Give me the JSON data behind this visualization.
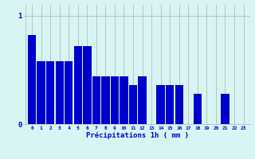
{
  "values": [
    0.82,
    0.58,
    0.58,
    0.58,
    0.58,
    0.72,
    0.72,
    0.44,
    0.44,
    0.44,
    0.44,
    0.36,
    0.44,
    0.0,
    0.36,
    0.36,
    0.36,
    0.0,
    0.28,
    0.0,
    0.0,
    0.28,
    0.0,
    0.0
  ],
  "categories": [
    "0",
    "1",
    "2",
    "3",
    "4",
    "5",
    "6",
    "7",
    "8",
    "9",
    "10",
    "11",
    "12",
    "13",
    "14",
    "15",
    "16",
    "17",
    "18",
    "19",
    "20",
    "21",
    "22",
    "23"
  ],
  "bar_color": "#0000cc",
  "background_color": "#d8f4f4",
  "grid_color": "#b0b0b0",
  "xlabel": "Précipitations 1h ( mm )",
  "xlabel_color": "#0000cc",
  "tick_color": "#0000cc",
  "ylim": [
    0,
    1.1
  ],
  "yticks": [
    0,
    1
  ],
  "figsize": [
    3.2,
    2.0
  ],
  "dpi": 100
}
